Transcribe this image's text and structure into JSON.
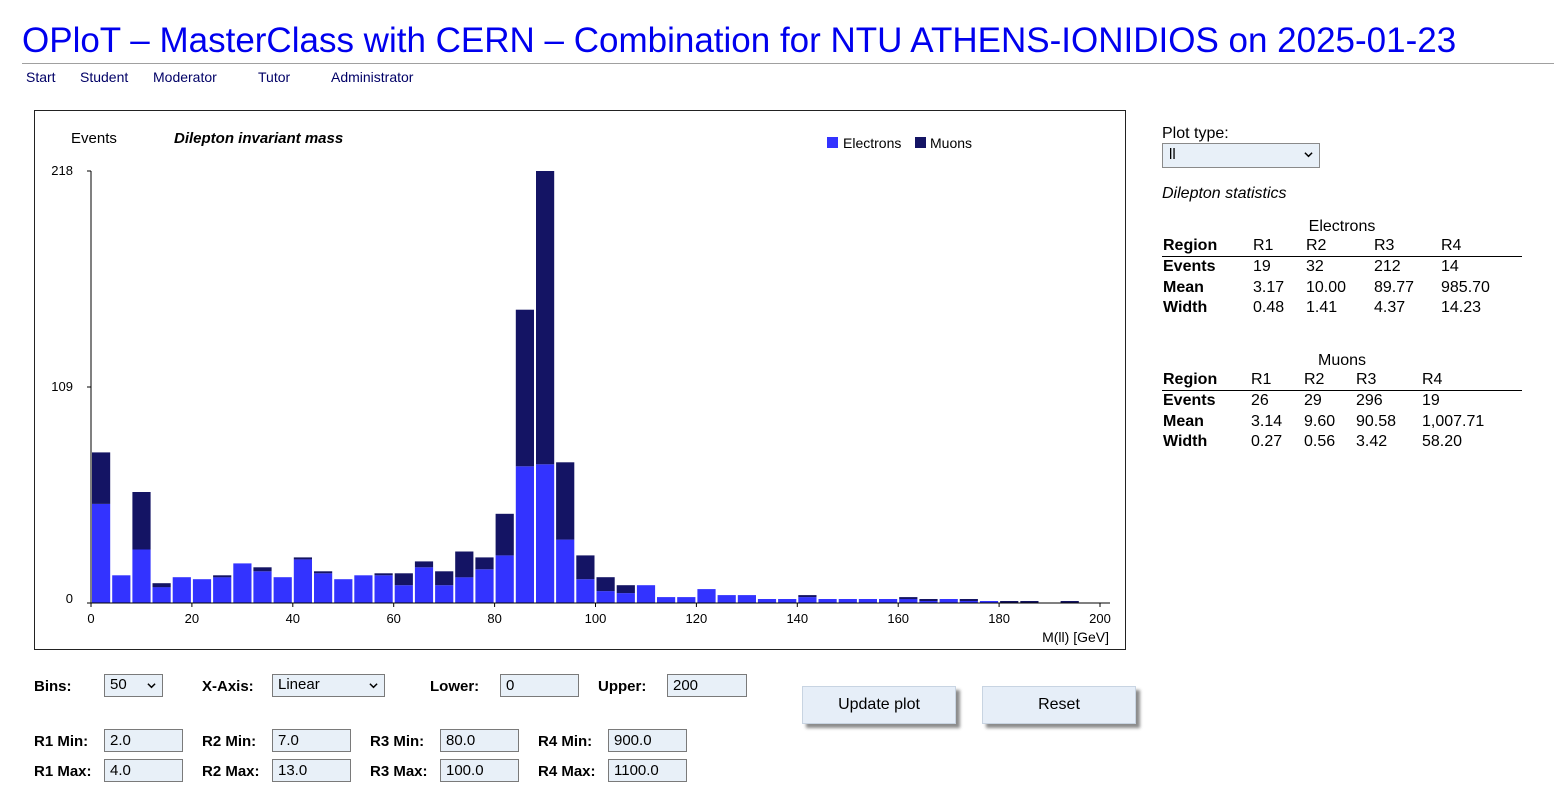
{
  "header": {
    "title": "OPloT – MasterClass with CERN – Combination for NTU ATHENS-IONIDIOS on 2025-01-23"
  },
  "nav": [
    "Start",
    "Student",
    "Moderator",
    "Tutor",
    "Administrator"
  ],
  "chart_data": {
    "type": "bar",
    "stacked": true,
    "title": "Dilepton invariant mass",
    "ylabel": "Events",
    "xlabel": "M(ll) [GeV]",
    "xlim": [
      0,
      200
    ],
    "ylim": [
      0,
      218
    ],
    "yticks": [
      "0",
      "109",
      "218"
    ],
    "xticks": [
      "0",
      "20",
      "40",
      "60",
      "80",
      "100",
      "120",
      "140",
      "160",
      "180",
      "200"
    ],
    "bin_width": 4,
    "x": [
      2,
      6,
      10,
      14,
      18,
      22,
      26,
      30,
      34,
      38,
      42,
      46,
      50,
      54,
      58,
      62,
      66,
      70,
      74,
      78,
      82,
      86,
      90,
      94,
      98,
      102,
      106,
      110,
      114,
      118,
      122,
      126,
      130,
      134,
      138,
      142,
      146,
      150,
      154,
      158,
      162,
      166,
      170,
      174,
      178,
      182,
      186,
      190,
      194,
      198
    ],
    "legend_position": "top-right",
    "series": [
      {
        "name": "Electrons",
        "color": "#3333ff",
        "values": [
          50,
          14,
          27,
          8,
          13,
          12,
          13,
          20,
          16,
          13,
          22,
          15,
          12,
          14,
          14,
          9,
          18,
          9,
          13,
          17,
          24,
          69,
          70,
          32,
          12,
          6,
          5,
          9,
          3,
          3,
          7,
          4,
          4,
          2,
          2,
          3,
          2,
          2,
          2,
          2,
          2,
          1,
          2,
          1,
          1,
          0,
          0,
          0,
          0,
          0
        ]
      },
      {
        "name": "Muons",
        "color": "#141464",
        "values": [
          26,
          0,
          29,
          2,
          0,
          0,
          1,
          0,
          2,
          0,
          1,
          1,
          0,
          0,
          1,
          6,
          3,
          7,
          13,
          6,
          21,
          79,
          148,
          39,
          12,
          7,
          4,
          0,
          0,
          0,
          0,
          0,
          0,
          0,
          0,
          1,
          0,
          0,
          0,
          0,
          1,
          1,
          0,
          1,
          0,
          1,
          1,
          0,
          1,
          0
        ]
      }
    ]
  },
  "side": {
    "plot_type_label": "Plot type:",
    "plot_type_value": "ll",
    "stats_title": "Dilepton statistics",
    "electrons": {
      "caption": "Electrons",
      "header": [
        "Region",
        "R1",
        "R2",
        "R3",
        "R4"
      ],
      "rows": [
        [
          "Events",
          "19",
          "32",
          "212",
          "14"
        ],
        [
          "Mean",
          "3.17",
          "10.00",
          "89.77",
          "985.70"
        ],
        [
          "Width",
          "0.48",
          "1.41",
          "4.37",
          "14.23"
        ]
      ]
    },
    "muons": {
      "caption": "Muons",
      "header": [
        "Region",
        "R1",
        "R2",
        "R3",
        "R4"
      ],
      "rows": [
        [
          "Events",
          "26",
          "29",
          "296",
          "19"
        ],
        [
          "Mean",
          "3.14",
          "9.60",
          "90.58",
          "1,007.71"
        ],
        [
          "Width",
          "0.27",
          "0.56",
          "3.42",
          "58.20"
        ]
      ]
    }
  },
  "controls": {
    "bins_label": "Bins:",
    "bins_value": "50",
    "xaxis_label": "X-Axis:",
    "xaxis_value": "Linear",
    "lower_label": "Lower:",
    "lower_value": "0",
    "upper_label": "Upper:",
    "upper_value": "200",
    "update_button": "Update plot",
    "reset_button": "Reset",
    "regions": [
      {
        "min_label": "R1 Min:",
        "min": "2.0",
        "max_label": "R1 Max:",
        "max": "4.0"
      },
      {
        "min_label": "R2 Min:",
        "min": "7.0",
        "max_label": "R2 Max:",
        "max": "13.0"
      },
      {
        "min_label": "R3 Min:",
        "min": "80.0",
        "max_label": "R3 Max:",
        "max": "100.0"
      },
      {
        "min_label": "R4 Min:",
        "min": "900.0",
        "max_label": "R4 Max:",
        "max": "1100.0"
      }
    ]
  }
}
